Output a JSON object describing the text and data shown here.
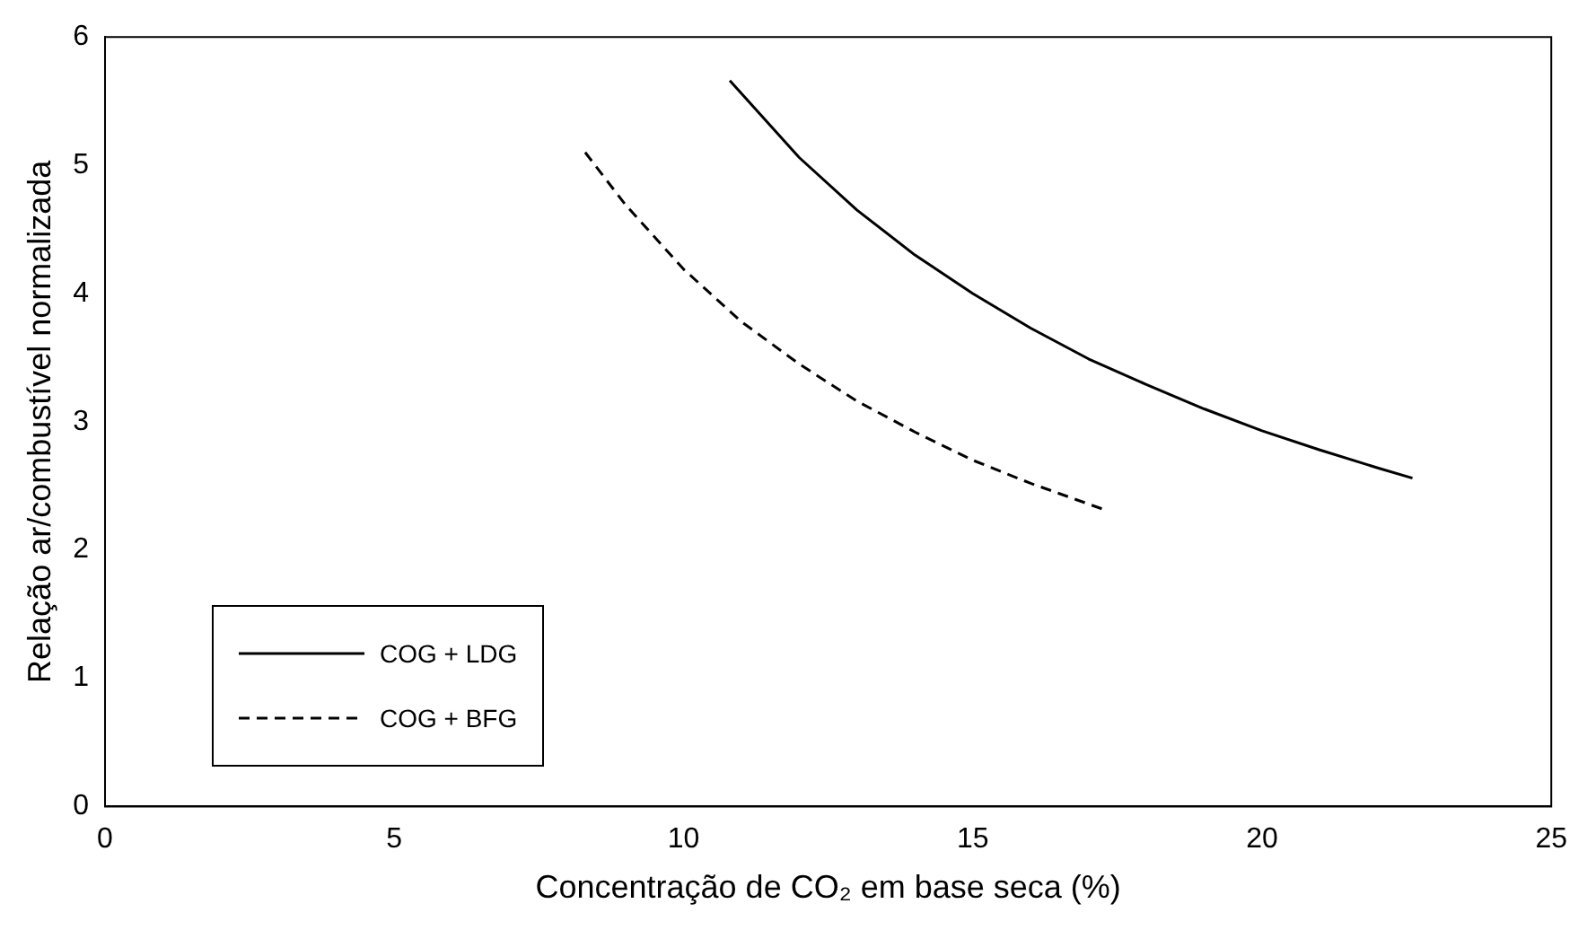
{
  "chart_data": {
    "type": "line",
    "xlabel": "Concentração de CO₂ em base seca (%)",
    "ylabel": "Relação ar/combustível normalizada",
    "xlim": [
      0,
      25
    ],
    "xticks": [
      0,
      5,
      10,
      15,
      20,
      25
    ],
    "ylim": [
      0,
      6
    ],
    "yticks": [
      0,
      1,
      2,
      3,
      4,
      5,
      6
    ],
    "grid": false,
    "legend": "bottom left",
    "marker": "none",
    "series": [
      {
        "name": "COG + LDG",
        "color": "#000000",
        "line_style": "solid",
        "x": [
          10.8,
          12,
          13,
          14,
          15,
          16,
          17,
          18,
          19,
          20,
          21,
          22,
          22.6
        ],
        "values": [
          5.66,
          5.06,
          4.65,
          4.3,
          4.0,
          3.73,
          3.49,
          3.29,
          3.1,
          2.93,
          2.78,
          2.64,
          2.56
        ]
      },
      {
        "name": "COG + BFG",
        "color": "#000000",
        "line_style": "dashed",
        "x": [
          8.3,
          9,
          10,
          11,
          12,
          13,
          14,
          15,
          16,
          17.3
        ],
        "values": [
          5.1,
          4.69,
          4.19,
          3.78,
          3.45,
          3.16,
          2.92,
          2.7,
          2.52,
          2.31
        ]
      }
    ]
  }
}
